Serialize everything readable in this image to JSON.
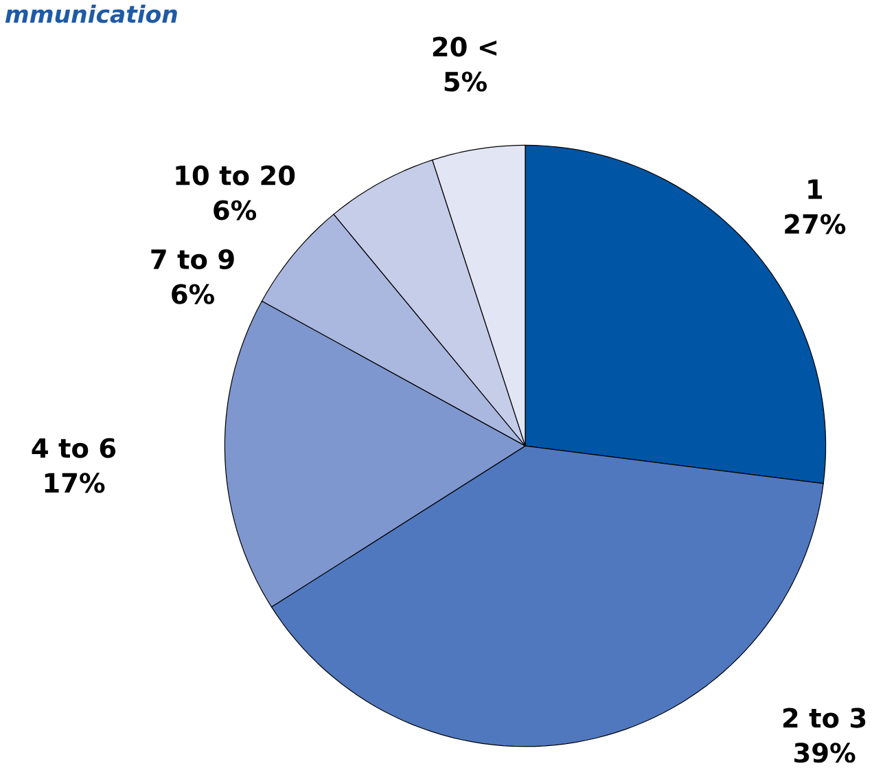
{
  "chart_data": {
    "type": "pie",
    "title": "mmunication",
    "categories": [
      "1",
      "2 to 3",
      "4 to 6",
      "7 to 9",
      "10 to 20",
      "20 <"
    ],
    "values": [
      27,
      39,
      17,
      6,
      6,
      5
    ],
    "value_labels": [
      "27%",
      "39%",
      "17%",
      "6%",
      "6%",
      "5%"
    ],
    "colors": [
      "#0055a5",
      "#5078bf",
      "#7f97cf",
      "#aab7de",
      "#c6cde9",
      "#e1e5f4"
    ]
  }
}
